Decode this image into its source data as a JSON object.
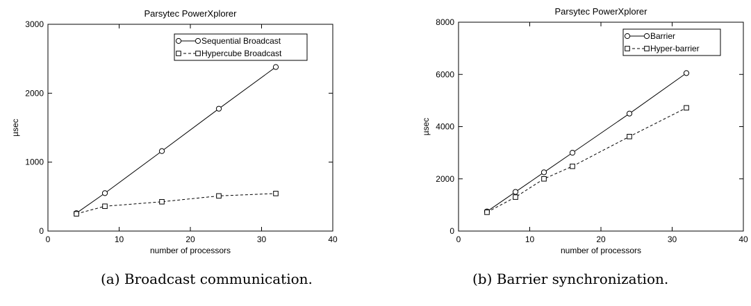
{
  "captions": [
    "(a) Broadcast communication.",
    "(b) Barrier synchronization."
  ],
  "chart_data": [
    {
      "type": "line",
      "title": "Parsytec PowerXplorer",
      "xlabel": "number of processors",
      "ylabel": "µsec",
      "xlim": [
        0,
        40
      ],
      "ylim": [
        0,
        3000
      ],
      "xticks": [
        0,
        10,
        20,
        30,
        40
      ],
      "yticks": [
        0,
        1000,
        2000,
        3000
      ],
      "grid": false,
      "legend_position": "top-right",
      "series": [
        {
          "name": "Sequential Broadcast",
          "marker": "circle",
          "line": "solid",
          "x": [
            4,
            8,
            16,
            24,
            32
          ],
          "y": [
            260,
            550,
            1160,
            1775,
            2380
          ]
        },
        {
          "name": "Hypercube Broadcast",
          "marker": "square",
          "line": "dashed",
          "x": [
            4,
            8,
            16,
            24,
            32
          ],
          "y": [
            250,
            360,
            425,
            510,
            545
          ]
        }
      ]
    },
    {
      "type": "line",
      "title": "Parsytec PowerXplorer",
      "xlabel": "number of processors",
      "ylabel": "µsec",
      "xlim": [
        0,
        40
      ],
      "ylim": [
        0,
        8000
      ],
      "xticks": [
        0,
        10,
        20,
        30,
        40
      ],
      "yticks": [
        0,
        2000,
        4000,
        6000,
        8000
      ],
      "grid": false,
      "legend_position": "top-right",
      "series": [
        {
          "name": "Barrier",
          "marker": "circle",
          "line": "solid",
          "x": [
            4,
            8,
            12,
            16,
            24,
            32
          ],
          "y": [
            750,
            1500,
            2250,
            3000,
            4500,
            6050
          ]
        },
        {
          "name": "Hyper-barrier",
          "marker": "square",
          "line": "dashed",
          "x": [
            4,
            8,
            12,
            16,
            24,
            32
          ],
          "y": [
            720,
            1300,
            2000,
            2480,
            3620,
            4720
          ]
        }
      ]
    }
  ]
}
